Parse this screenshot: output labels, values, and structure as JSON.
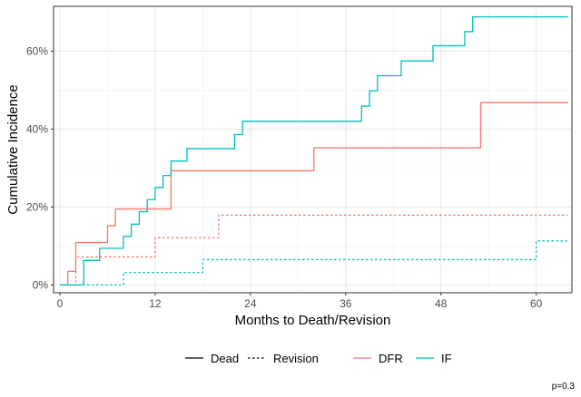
{
  "chart_data": {
    "type": "line",
    "step": true,
    "xlabel": "Months to Death/Revision",
    "ylabel": "Cumulative Incidence",
    "xlim": [
      -0.8,
      64.5
    ],
    "ylim": [
      -0.02,
      0.715
    ],
    "xticks": [
      0,
      12,
      24,
      36,
      48,
      60
    ],
    "yticks": [
      0,
      0.2,
      0.4,
      0.6
    ],
    "ytick_labels": [
      "0%",
      "20%",
      "40%",
      "60%"
    ],
    "grid": true,
    "legend_position": "bottom",
    "legend_linetype": [
      {
        "label": "Dead",
        "dash": "solid"
      },
      {
        "label": "Revision",
        "dash": "dotted"
      }
    ],
    "legend_color": [
      {
        "label": "DFR",
        "color": "#F8766D"
      },
      {
        "label": "IF",
        "color": "#00BFC4"
      }
    ],
    "annotation": "p=0.3",
    "series": [
      {
        "group": "DFR",
        "event": "Dead",
        "color": "#F8766D",
        "dash": "solid",
        "x": [
          0,
          1,
          2,
          6,
          7,
          9,
          14,
          32,
          53,
          64
        ],
        "y": [
          0,
          0.035,
          0.109,
          0.152,
          0.195,
          0.195,
          0.293,
          0.352,
          0.468,
          0.468
        ]
      },
      {
        "group": "IF",
        "event": "Dead",
        "color": "#00BFC4",
        "dash": "solid",
        "x": [
          0,
          3,
          5,
          8,
          9,
          10,
          11,
          12,
          13,
          14,
          16,
          22,
          23,
          38,
          39,
          40,
          43,
          47,
          51,
          52,
          64
        ],
        "y": [
          0,
          0.063,
          0.094,
          0.125,
          0.156,
          0.188,
          0.219,
          0.25,
          0.281,
          0.318,
          0.35,
          0.386,
          0.42,
          0.459,
          0.498,
          0.537,
          0.575,
          0.614,
          0.65,
          0.688,
          0.688
        ]
      },
      {
        "group": "DFR",
        "event": "Revision",
        "color": "#F8766D",
        "dash": "dotted",
        "x": [
          0,
          2,
          5,
          12,
          20,
          64
        ],
        "y": [
          0,
          0.072,
          0.072,
          0.121,
          0.179,
          0.179
        ]
      },
      {
        "group": "IF",
        "event": "Revision",
        "color": "#00BFC4",
        "dash": "dotted",
        "x": [
          0,
          8,
          18,
          60,
          64
        ],
        "y": [
          0,
          0.032,
          0.065,
          0.113,
          0.113
        ]
      }
    ]
  }
}
